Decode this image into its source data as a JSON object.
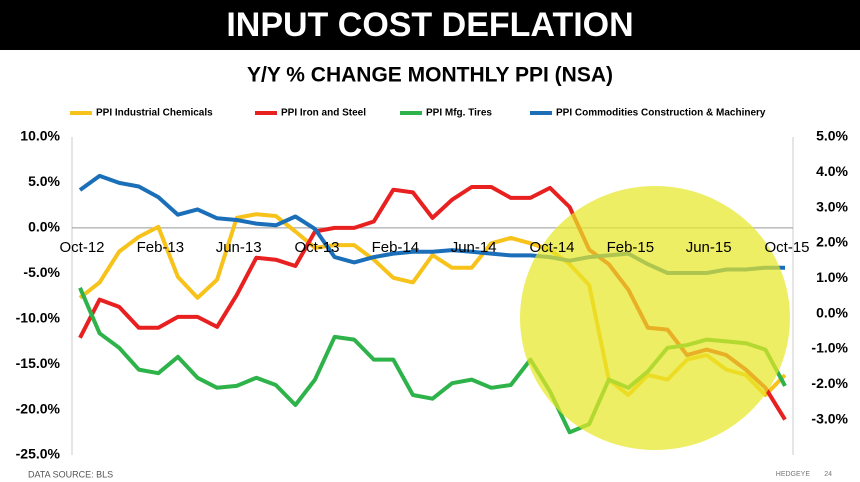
{
  "chart_data": {
    "type": "line",
    "title": "INPUT COST DEFLATION",
    "subtitle": "Y/Y % CHANGE MONTHLY PPI (NSA)",
    "source": "DATA SOURCE: BLS",
    "brand": "HEDGEYE",
    "page": "24",
    "categories": [
      "Oct-12",
      null,
      null,
      null,
      "Feb-13",
      null,
      null,
      null,
      "Jun-13",
      null,
      null,
      null,
      "Oct-13",
      null,
      null,
      null,
      "Feb-14",
      null,
      null,
      null,
      "Jun-14",
      null,
      null,
      null,
      "Oct-14",
      null,
      null,
      null,
      "Feb-15",
      null,
      null,
      null,
      "Jun-15",
      null,
      null,
      null,
      "Oct-15"
    ],
    "ylim": [
      -25,
      10
    ],
    "yticks": [
      {
        "value": 10,
        "label": "10.0%"
      },
      {
        "value": 5,
        "label": "5.0%"
      },
      {
        "value": 0,
        "label": "0.0%"
      },
      {
        "value": -5,
        "label": "-5.0%"
      },
      {
        "value": -10,
        "label": "-10.0%"
      },
      {
        "value": -15,
        "label": "-15.0%"
      },
      {
        "value": -20,
        "label": "-20.0%"
      },
      {
        "value": -25,
        "label": "-25.0%"
      }
    ],
    "y2lim": [
      -4,
      5
    ],
    "y2ticks": [
      {
        "value": 5,
        "label": "5.0%"
      },
      {
        "value": 4,
        "label": "4.0%"
      },
      {
        "value": 3,
        "label": "3.0%"
      },
      {
        "value": 2,
        "label": "2.0%"
      },
      {
        "value": 1,
        "label": "1.0%"
      },
      {
        "value": 0,
        "label": "0.0%"
      },
      {
        "value": -1,
        "label": "-1.0%"
      },
      {
        "value": -2,
        "label": "-2.0%"
      },
      {
        "value": -3,
        "label": "-3.0%"
      }
    ],
    "series": [
      {
        "name": "PPI Industrial Chemicals",
        "color": "#f7c21a",
        "values": [
          -7.7,
          -6,
          -2.6,
          -1,
          0.1,
          -5.4,
          -7.7,
          -5.7,
          1.1,
          1.5,
          1.3,
          -0.4,
          -2.2,
          -1.9,
          -1.9,
          -3.5,
          -5.5,
          -6,
          -3,
          -4.4,
          -4.4,
          -1.7,
          -1.1,
          -1.7,
          -2.4,
          -4,
          -6.3,
          -16.7,
          -18.4,
          -16.2,
          -16.7,
          -14.5,
          -14,
          -15.6,
          -16.2,
          -18.4,
          -16.2
        ]
      },
      {
        "name": "PPI Iron and Steel",
        "color": "#e8201f",
        "values": [
          -12.1,
          -7.9,
          -8.7,
          -11,
          -11,
          -9.8,
          -9.8,
          -10.9,
          -7.4,
          -3.3,
          -3.5,
          -4.2,
          -0.4,
          0,
          0,
          0.7,
          4.2,
          3.9,
          1.1,
          3.1,
          4.5,
          4.5,
          3.3,
          3.3,
          4.4,
          2.3,
          -2.4,
          -4,
          -6.8,
          -11,
          -11.2,
          -14,
          -13.4,
          -14,
          -15.6,
          -17.6,
          -21.1
        ]
      },
      {
        "name": "PPI Mfg. Tires",
        "color": "#2db34a",
        "values": [
          -6.6,
          -11.6,
          -13.2,
          -15.6,
          -16,
          -14.2,
          -16.5,
          -17.6,
          -17.4,
          -16.5,
          -17.3,
          -19.5,
          -16.7,
          -12,
          -12.3,
          -14.5,
          -14.5,
          -18.4,
          -18.8,
          -17.1,
          -16.7,
          -17.6,
          -17.3,
          -14.5,
          -18,
          -22.5,
          -21.6,
          -16.7,
          -17.6,
          -15.8,
          -13.2,
          -12.9,
          -12.3,
          -12.5,
          -12.7,
          -13.4,
          -17.4
        ]
      },
      {
        "name": "PPI Commodities Construction & Machinery",
        "color": "#1a6fb8",
        "axis": "y2",
        "values": [
          3.5,
          3.9,
          3.7,
          3.6,
          3.3,
          2.8,
          2.95,
          2.7,
          2.65,
          2.55,
          2.5,
          2.75,
          2.4,
          1.6,
          1.45,
          1.6,
          1.7,
          1.75,
          1.75,
          1.8,
          1.75,
          1.7,
          1.65,
          1.65,
          1.6,
          1.5,
          1.6,
          1.65,
          1.7,
          1.4,
          1.15,
          1.15,
          1.15,
          1.25,
          1.25,
          1.3,
          1.3
        ]
      }
    ]
  }
}
